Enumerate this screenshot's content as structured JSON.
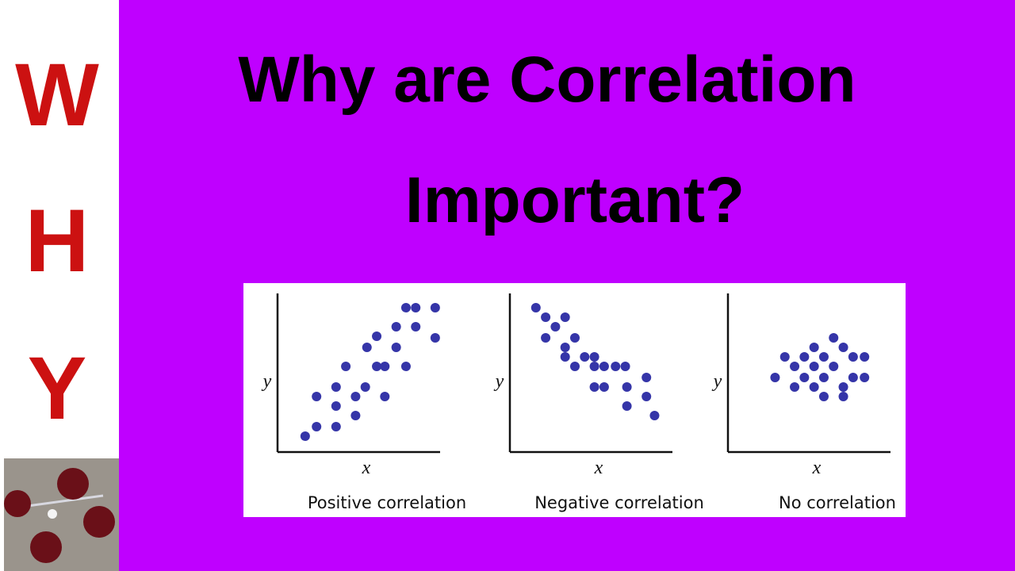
{
  "title": {
    "lines": [
      "Why are Correlation",
      "Important?"
    ]
  },
  "side": {
    "letters": [
      "W",
      "H",
      "Y"
    ]
  },
  "chart_data": [
    {
      "type": "scatter",
      "caption": "Positive correlation",
      "xlabel": "x",
      "ylabel": "y",
      "color": "#3535a8",
      "xlim": [
        0,
        10
      ],
      "ylim": [
        0,
        10
      ],
      "x": [
        1.7,
        2.4,
        3.6,
        3.6,
        4.8,
        4.8,
        2.4,
        3.6,
        5.4,
        6.6,
        6.1,
        6.6,
        4.2,
        7.9,
        5.5,
        6.1,
        7.3,
        7.3,
        8.5,
        7.9,
        8.5,
        9.7,
        9.7
      ],
      "values": [
        1.0,
        1.6,
        1.6,
        2.9,
        2.3,
        3.5,
        3.5,
        4.1,
        4.1,
        3.5,
        5.4,
        5.4,
        5.4,
        5.4,
        6.6,
        7.3,
        6.6,
        7.9,
        7.9,
        9.1,
        9.1,
        9.1,
        7.2
      ]
    },
    {
      "type": "scatter",
      "caption": "Negative correlation",
      "xlabel": "x",
      "ylabel": "y",
      "color": "#3535a8",
      "xlim": [
        0,
        10
      ],
      "ylim": [
        0,
        10
      ],
      "x": [
        1.6,
        2.2,
        3.4,
        2.8,
        2.2,
        3.4,
        3.4,
        4.0,
        4.6,
        5.2,
        5.8,
        4.0,
        5.2,
        6.5,
        7.1,
        5.2,
        5.8,
        7.2,
        8.4,
        8.4,
        7.2,
        8.9
      ],
      "values": [
        9.1,
        8.5,
        8.5,
        7.9,
        7.2,
        6.6,
        6.0,
        7.2,
        6.0,
        6.0,
        5.4,
        5.4,
        5.4,
        5.4,
        5.4,
        4.1,
        4.1,
        4.1,
        4.7,
        3.5,
        2.9,
        2.3
      ]
    },
    {
      "type": "scatter",
      "caption": "No correlation",
      "xlabel": "x",
      "ylabel": "y",
      "color": "#3535a8",
      "xlim": [
        0,
        10
      ],
      "ylim": [
        0,
        10
      ],
      "x": [
        2.9,
        3.5,
        4.1,
        4.1,
        4.7,
        4.7,
        5.3,
        5.3,
        5.3,
        5.9,
        5.9,
        6.5,
        6.5,
        7.1,
        7.1,
        7.1,
        7.7,
        7.7,
        8.4,
        8.4,
        5.9
      ],
      "values": [
        4.7,
        6.0,
        5.4,
        4.1,
        6.0,
        4.7,
        6.6,
        5.4,
        4.1,
        6.0,
        4.7,
        7.2,
        5.4,
        6.6,
        4.1,
        3.5,
        6.0,
        4.7,
        6.0,
        4.7,
        3.5
      ]
    }
  ]
}
